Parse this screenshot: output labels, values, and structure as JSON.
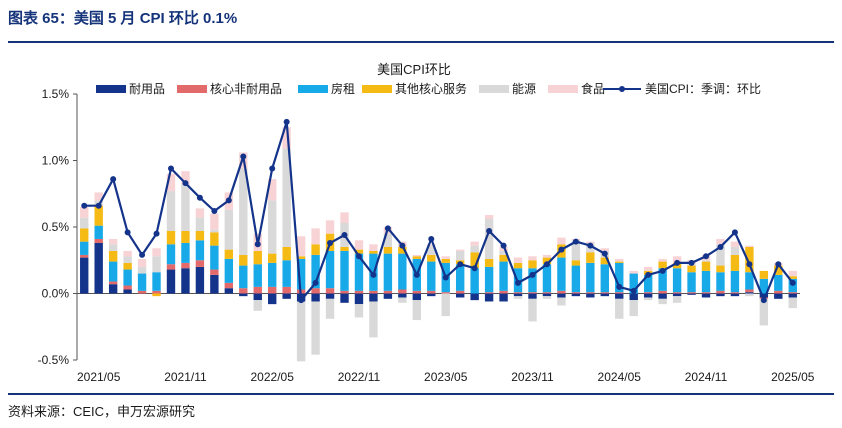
{
  "figure": {
    "label": "图表 65：美国 5 月 CPI 环比 0.1%",
    "source": "资料来源：CEIC，申万宏源研究"
  },
  "chart_data": {
    "type": "bar",
    "stacked": true,
    "title": "美国CPI环比",
    "ylim": [
      -0.5,
      1.5
    ],
    "yticks": [
      -0.5,
      0.0,
      0.5,
      1.0,
      1.5
    ],
    "ytick_labels": [
      "-0.5%",
      "0.0%",
      "0.5%",
      "1.0%",
      "1.5%"
    ],
    "x_label_months": [
      "2021/05",
      "2021/11",
      "2022/05",
      "2022/11",
      "2023/05",
      "2023/11",
      "2024/05",
      "2024/11",
      "2025/05"
    ],
    "categories": [
      "2021/04",
      "2021/05",
      "2021/06",
      "2021/07",
      "2021/08",
      "2021/09",
      "2021/10",
      "2021/11",
      "2021/12",
      "2022/01",
      "2022/02",
      "2022/03",
      "2022/04",
      "2022/05",
      "2022/06",
      "2022/07",
      "2022/08",
      "2022/09",
      "2022/10",
      "2022/11",
      "2022/12",
      "2023/01",
      "2023/02",
      "2023/03",
      "2023/04",
      "2023/05",
      "2023/06",
      "2023/07",
      "2023/08",
      "2023/09",
      "2023/10",
      "2023/11",
      "2023/12",
      "2024/01",
      "2024/02",
      "2024/03",
      "2024/04",
      "2024/05",
      "2024/06",
      "2024/07",
      "2024/08",
      "2024/09",
      "2024/10",
      "2024/11",
      "2024/12",
      "2025/01",
      "2025/02",
      "2025/03",
      "2025/04",
      "2025/05"
    ],
    "series": [
      {
        "name": "耐用品",
        "color": "#14338a",
        "values": [
          0.27,
          0.38,
          0.07,
          0.03,
          0.0,
          0.0,
          0.18,
          0.19,
          0.2,
          0.14,
          0.04,
          -0.02,
          -0.05,
          -0.08,
          -0.04,
          -0.06,
          -0.06,
          -0.04,
          -0.07,
          -0.08,
          -0.06,
          -0.04,
          -0.03,
          -0.05,
          -0.02,
          0.0,
          -0.03,
          -0.05,
          -0.06,
          -0.06,
          -0.02,
          -0.04,
          -0.02,
          -0.03,
          -0.02,
          -0.03,
          -0.02,
          -0.04,
          -0.05,
          -0.03,
          -0.04,
          -0.02,
          -0.01,
          -0.03,
          -0.02,
          -0.02,
          0.01,
          -0.03,
          -0.04,
          -0.03
        ]
      },
      {
        "name": "核心非耐用品",
        "color": "#e26a6a",
        "values": [
          0.02,
          0.03,
          0.02,
          0.03,
          0.02,
          0.02,
          0.04,
          0.04,
          0.05,
          0.04,
          0.04,
          0.04,
          0.05,
          0.05,
          0.05,
          0.03,
          0.04,
          0.04,
          0.02,
          0.02,
          0.02,
          0.02,
          0.03,
          0.02,
          0.02,
          0.01,
          0.02,
          0.0,
          0.01,
          0.02,
          0.01,
          0.01,
          0.01,
          0.02,
          0.01,
          0.01,
          0.01,
          0.01,
          0.0,
          0.01,
          0.02,
          0.01,
          0.01,
          0.01,
          0.02,
          0.01,
          0.02,
          -0.01,
          0.02,
          0.01
        ]
      },
      {
        "name": "房租",
        "color": "#18a9e8",
        "values": [
          0.1,
          0.1,
          0.15,
          0.12,
          0.13,
          0.14,
          0.15,
          0.15,
          0.15,
          0.18,
          0.18,
          0.17,
          0.17,
          0.18,
          0.2,
          0.23,
          0.25,
          0.28,
          0.3,
          0.28,
          0.28,
          0.28,
          0.27,
          0.24,
          0.22,
          0.22,
          0.2,
          0.19,
          0.19,
          0.22,
          0.18,
          0.18,
          0.21,
          0.25,
          0.2,
          0.22,
          0.21,
          0.22,
          0.15,
          0.13,
          0.17,
          0.18,
          0.15,
          0.16,
          0.14,
          0.16,
          0.13,
          0.11,
          0.12,
          0.1
        ]
      },
      {
        "name": "其他核心服务",
        "color": "#f5bb14",
        "values": [
          0.1,
          0.15,
          0.08,
          0.05,
          0.0,
          -0.02,
          0.1,
          0.09,
          0.07,
          0.1,
          0.07,
          0.08,
          0.1,
          0.07,
          0.1,
          0.02,
          0.08,
          0.13,
          0.03,
          0.03,
          0.02,
          0.05,
          0.05,
          0.02,
          0.05,
          0.03,
          0.03,
          0.12,
          0.06,
          0.05,
          0.04,
          0.06,
          0.05,
          0.1,
          0.04,
          0.08,
          0.05,
          0.01,
          0.0,
          0.03,
          0.05,
          0.04,
          0.05,
          0.07,
          0.05,
          0.12,
          0.19,
          0.06,
          0.07,
          0.02
        ]
      },
      {
        "name": "能源",
        "color": "#d9d9d9",
        "values": [
          0.08,
          0.04,
          0.05,
          0.05,
          0.05,
          0.12,
          0.3,
          0.35,
          0.1,
          0.02,
          0.3,
          0.65,
          -0.08,
          0.4,
          0.74,
          -0.45,
          -0.4,
          -0.15,
          0.18,
          -0.1,
          -0.27,
          0.1,
          -0.04,
          -0.15,
          0.07,
          -0.17,
          0.07,
          0.05,
          0.3,
          0.03,
          -0.02,
          -0.17,
          -0.02,
          -0.06,
          0.15,
          0.07,
          0.05,
          -0.15,
          -0.12,
          -0.02,
          -0.04,
          -0.05,
          0.01,
          0.01,
          0.16,
          0.06,
          -0.02,
          -0.2,
          0.0,
          -0.08
        ]
      },
      {
        "name": "食品",
        "color": "#f8d3d6",
        "values": [
          0.08,
          0.06,
          0.04,
          0.04,
          0.06,
          0.06,
          0.13,
          0.1,
          0.07,
          0.12,
          0.13,
          0.12,
          0.13,
          0.16,
          0.16,
          0.15,
          0.12,
          0.1,
          0.08,
          0.07,
          0.05,
          0.05,
          0.04,
          0.01,
          0.01,
          0.02,
          0.01,
          0.03,
          0.03,
          0.03,
          0.04,
          0.03,
          0.02,
          0.05,
          0.01,
          0.01,
          0.02,
          0.02,
          0.02,
          0.03,
          0.02,
          0.05,
          0.03,
          0.04,
          0.04,
          0.04,
          0.01,
          0.0,
          0.02,
          0.04
        ]
      }
    ],
    "line": {
      "name": "美国CPI：季调：环比",
      "color": "#14338a",
      "values": [
        0.66,
        0.66,
        0.86,
        0.46,
        0.29,
        0.45,
        0.94,
        0.83,
        0.72,
        0.62,
        0.7,
        1.03,
        0.37,
        0.94,
        1.29,
        -0.05,
        0.08,
        0.38,
        0.44,
        0.28,
        0.14,
        0.49,
        0.36,
        0.14,
        0.41,
        0.12,
        0.22,
        0.19,
        0.47,
        0.36,
        0.08,
        0.14,
        0.22,
        0.33,
        0.39,
        0.36,
        0.3,
        0.05,
        0.02,
        0.14,
        0.17,
        0.23,
        0.23,
        0.28,
        0.35,
        0.46,
        0.22,
        -0.05,
        0.22,
        0.08
      ]
    }
  }
}
